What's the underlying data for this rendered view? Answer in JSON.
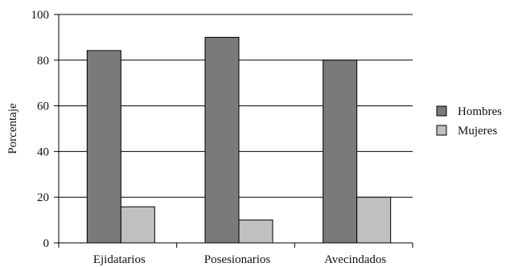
{
  "chart_data": {
    "type": "bar",
    "categories": [
      "Ejidatarios",
      "Posesionarios",
      "Avecindados"
    ],
    "series": [
      {
        "name": "Hombres",
        "values": [
          84.2,
          90,
          80
        ],
        "color": "#7a7a7a"
      },
      {
        "name": "Mujeres",
        "values": [
          15.8,
          10,
          20
        ],
        "color": "#c0c0c0"
      }
    ],
    "ylabel": "Porcentaje",
    "xlabel": "",
    "title": "",
    "ylim": [
      0,
      100
    ],
    "yticks": [
      0,
      20,
      40,
      60,
      80,
      100
    ],
    "grid": true,
    "legend": "right"
  }
}
